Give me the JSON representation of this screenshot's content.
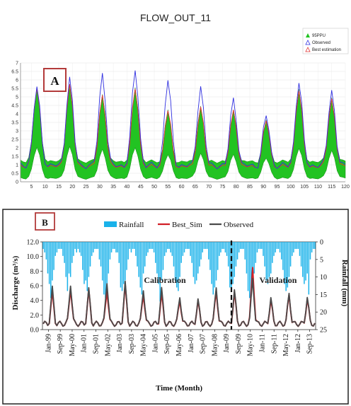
{
  "chart_data": [
    {
      "type": "area",
      "panel_label": "A",
      "title": "FLOW_OUT_11",
      "x_ticks": [
        5,
        10,
        15,
        20,
        25,
        30,
        35,
        40,
        45,
        50,
        55,
        60,
        65,
        70,
        75,
        80,
        85,
        90,
        95,
        100,
        105,
        110,
        115,
        120
      ],
      "y_ticks": [
        0,
        0.5,
        1,
        1.5,
        2,
        2.5,
        3,
        3.5,
        4,
        4.5,
        5,
        5.5,
        6,
        6.5,
        7
      ],
      "xlim": [
        1,
        120
      ],
      "ylim": [
        0,
        7
      ],
      "grid": true,
      "legend_position": "top-right",
      "legend": [
        "95PPU",
        "Observed",
        "Best estimation"
      ],
      "colors": {
        "band": "#22c322",
        "band_edge": "#118811",
        "observed": "#2f2fe0",
        "best": "#e03030"
      },
      "peaks": [
        {
          "x": 7,
          "obs": 5.6,
          "best": 5.5,
          "upper": 5.2,
          "lower": 0.3,
          "base": 1.2
        },
        {
          "x": 19,
          "obs": 6.1,
          "best": 5.7,
          "upper": 5.3,
          "lower": 0.3,
          "base": 1.1
        },
        {
          "x": 31,
          "obs": 6.4,
          "best": 5.1,
          "upper": 4.9,
          "lower": 0.3,
          "base": 1.1
        },
        {
          "x": 43,
          "obs": 6.6,
          "best": 5.5,
          "upper": 5.2,
          "lower": 0.3,
          "base": 1.1
        },
        {
          "x": 55,
          "obs": 6.0,
          "best": 4.2,
          "upper": 4.0,
          "lower": 0.3,
          "base": 1.0
        },
        {
          "x": 67,
          "obs": 5.6,
          "best": 4.4,
          "upper": 4.2,
          "lower": 0.3,
          "base": 1.0
        },
        {
          "x": 79,
          "obs": 4.9,
          "best": 4.2,
          "upper": 4.0,
          "lower": 0.3,
          "base": 1.0
        },
        {
          "x": 91,
          "obs": 3.9,
          "best": 3.6,
          "upper": 3.4,
          "lower": 0.3,
          "base": 1.0
        },
        {
          "x": 103,
          "obs": 5.9,
          "best": 5.4,
          "upper": 5.1,
          "lower": 0.3,
          "base": 1.1
        },
        {
          "x": 115,
          "obs": 5.4,
          "best": 4.9,
          "upper": 4.7,
          "lower": 0.3,
          "base": 1.1
        }
      ]
    },
    {
      "type": "line",
      "panel_label": "B",
      "legend": [
        "Rainfall",
        "Best_Sim",
        "Observed"
      ],
      "legend_position": "top",
      "xlabel": "Time (Month)",
      "ylabel_left": "Discharge (m³/s)",
      "ylabel_right": "Rainfall (mm)",
      "y_left_ticks": [
        "0.0",
        "2.0",
        "4.0",
        "6.0",
        "8.0",
        "10.0",
        "12.0"
      ],
      "y_right_ticks": [
        "0",
        "5",
        "10",
        "15",
        "20",
        "25"
      ],
      "ylim_left": [
        0,
        12
      ],
      "ylim_right_inverted": [
        0,
        25
      ],
      "x_labels": [
        "Jan-99",
        "Sep-99",
        "May-00",
        "Jan-01",
        "Sep-01",
        "May-02",
        "Jan-03",
        "Sep-03",
        "May-04",
        "Jan-05",
        "Sep-05",
        "May-06",
        "Jan-07",
        "Sep-07",
        "May-08",
        "Jan-09",
        "Sep-09",
        "May-10",
        "Jan-11",
        "Sep-11",
        "May-12",
        "Jan-12",
        "Sep-13"
      ],
      "annotations": {
        "calibration": "Calibration",
        "validation": "Validation",
        "split_month_index": 124
      },
      "colors": {
        "rainfall": "#1ab2ea",
        "best_sim": "#d11f26",
        "observed": "#4a4a4a"
      },
      "yearly_peaks_observed": [
        5.6,
        6.3,
        5.4,
        6.6,
        6.3,
        5.6,
        5.5,
        4.6,
        4.0,
        5.9,
        5.3,
        7.1,
        4.3,
        5.0,
        4.4
      ],
      "yearly_peaks_best_sim": [
        5.0,
        5.8,
        5.2,
        5.5,
        5.9,
        5.0,
        4.8,
        4.2,
        3.8,
        5.4,
        5.0,
        8.6,
        4.0,
        4.8,
        4.2
      ],
      "rainfall_monthly_mm": [
        2,
        3,
        5,
        9,
        12,
        16,
        11,
        8,
        4,
        3,
        2,
        2,
        2,
        4,
        6,
        10,
        14,
        9,
        10,
        6,
        4,
        2,
        3,
        2,
        3,
        4,
        8,
        12,
        11,
        14,
        10,
        7,
        4,
        3,
        2,
        2,
        2,
        5,
        7,
        11,
        15,
        16,
        12,
        9,
        5,
        3,
        2,
        2,
        3,
        3,
        6,
        13,
        14,
        12,
        11,
        8,
        5,
        2,
        3,
        2,
        2,
        4,
        7,
        10,
        13,
        15,
        9,
        7,
        4,
        3,
        2,
        2,
        2,
        3,
        6,
        9,
        12,
        17,
        11,
        8,
        4,
        3,
        2,
        2,
        3,
        4,
        7,
        11,
        13,
        14,
        10,
        6,
        4,
        3,
        2,
        2,
        2,
        4,
        6,
        10,
        12,
        11,
        9,
        7,
        5,
        3,
        2,
        2,
        2,
        5,
        8,
        12,
        15,
        13,
        11,
        8,
        4,
        3,
        2,
        2,
        3,
        4,
        7,
        13,
        14,
        12,
        10,
        7,
        5,
        3,
        2,
        2,
        2,
        5,
        9,
        14,
        16,
        15,
        13,
        9,
        6,
        3,
        2,
        2,
        2,
        4,
        7,
        11,
        12,
        10,
        9,
        6,
        4,
        3,
        2,
        2,
        3,
        5,
        8,
        12,
        14,
        13,
        10,
        7,
        4,
        3,
        2,
        2,
        2,
        4,
        7,
        10,
        12,
        11,
        9,
        15,
        5,
        3,
        2,
        2
      ]
    }
  ]
}
